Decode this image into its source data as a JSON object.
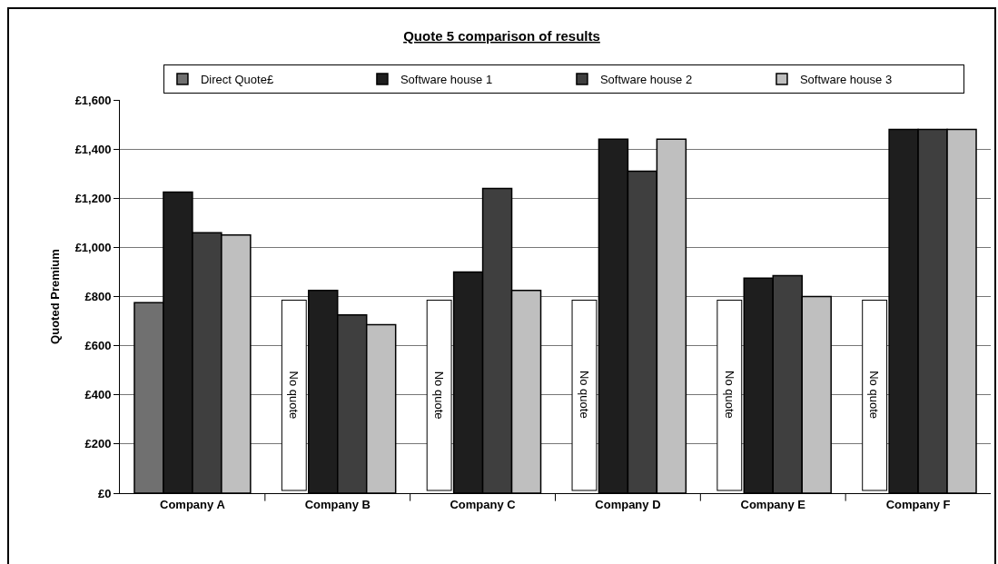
{
  "chart_data": {
    "type": "bar",
    "title": "Quote 5 comparison of results",
    "ylabel": "Quoted Premium",
    "categories": [
      "Company A",
      "Company B",
      "Company C",
      "Company D",
      "Company E",
      "Company F"
    ],
    "series": [
      {
        "name": "Direct Quote£",
        "color": "#707070",
        "values": [
          775,
          null,
          null,
          null,
          null,
          null
        ]
      },
      {
        "name": "Software house 1",
        "color": "#1e1e1e",
        "values": [
          1225,
          825,
          900,
          1440,
          875,
          1480
        ]
      },
      {
        "name": "Software house 2",
        "color": "#3f3f3f",
        "values": [
          1060,
          725,
          1240,
          1310,
          885,
          1480
        ]
      },
      {
        "name": "Software house 3",
        "color": "#bfbfbf",
        "values": [
          1050,
          685,
          825,
          1440,
          800,
          1480
        ]
      }
    ],
    "ylim": [
      0,
      1600
    ],
    "yticks": [
      {
        "value": 0,
        "label": "£0"
      },
      {
        "value": 200,
        "label": "£200"
      },
      {
        "value": 400,
        "label": "£400"
      },
      {
        "value": 600,
        "label": "£600"
      },
      {
        "value": 800,
        "label": "£800"
      },
      {
        "value": 1000,
        "label": "£1,000"
      },
      {
        "value": 1200,
        "label": "£1,200"
      },
      {
        "value": 1400,
        "label": "£1,400"
      },
      {
        "value": 1600,
        "label": "£1,600"
      }
    ],
    "grid": "y",
    "legend": "top left",
    "annotations": [
      "No quote",
      "No quote",
      "No quote",
      "No quote",
      "No quote"
    ]
  }
}
